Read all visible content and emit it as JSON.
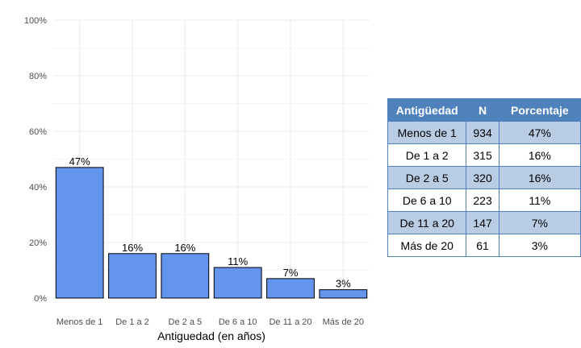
{
  "chart_data": {
    "type": "bar",
    "categories": [
      "Menos de 1",
      "De 1 a 2",
      "De 2 a 5",
      "De 6 a 10",
      "De 11 a 20",
      "Más de 20"
    ],
    "values": [
      47,
      16,
      16,
      11,
      7,
      3
    ],
    "data_labels": [
      "47%",
      "16%",
      "16%",
      "11%",
      "7%",
      "3%"
    ],
    "xlabel": "Antiguedad (en años)",
    "ylabel": "",
    "ylim": [
      0,
      100
    ],
    "yticks": [
      "0%",
      "20%",
      "40%",
      "60%",
      "80%",
      "100%"
    ],
    "grid": true,
    "bar_color": "#6495ed",
    "bar_edge_color": "#000000",
    "grid_color": "#ebebeb"
  },
  "table": {
    "headers": [
      "Antigüedad",
      "N",
      "Porcentaje"
    ],
    "rows": [
      [
        "Menos de 1",
        "934",
        "47%"
      ],
      [
        "De 1 a 2",
        "315",
        "16%"
      ],
      [
        "De 2 a 5",
        "320",
        "16%"
      ],
      [
        "De 6 a 10",
        "223",
        "11%"
      ],
      [
        "De 11 a 20",
        "147",
        "7%"
      ],
      [
        "Más de 20",
        "61",
        "3%"
      ]
    ],
    "header_color": "#4f81bd",
    "band_color": "#b8cce4"
  }
}
